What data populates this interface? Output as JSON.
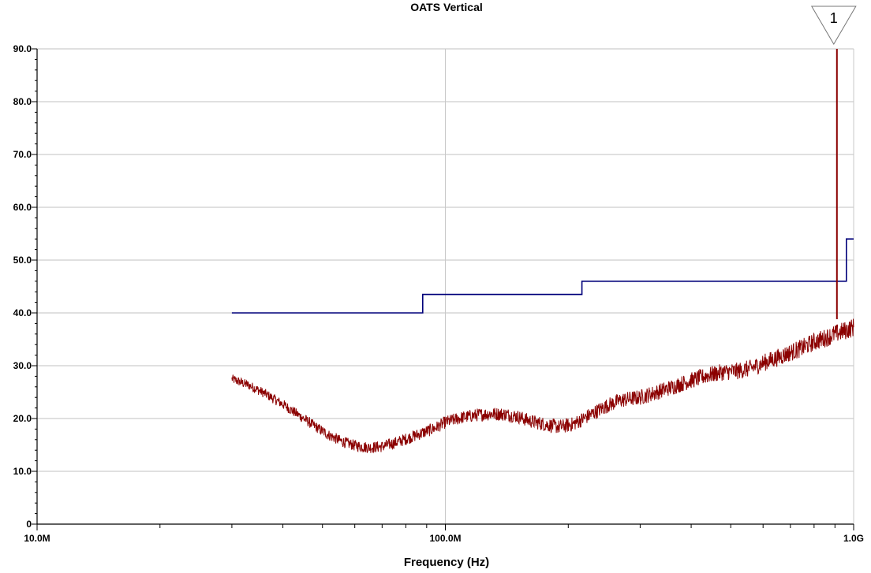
{
  "chart_data": {
    "type": "line",
    "title": "OATS Vertical",
    "xlabel": "Frequency (Hz)",
    "ylabel": "",
    "x_scale": "log",
    "xlim": [
      10000000,
      1000000000
    ],
    "ylim": [
      0,
      90
    ],
    "grid": true,
    "x_tick_values": [
      10000000,
      100000000,
      1000000000
    ],
    "x_tick_labels": [
      "10.0M",
      "100.0M",
      "1.0G"
    ],
    "y_tick_values": [
      0,
      10,
      20,
      30,
      40,
      50,
      60,
      70,
      80,
      90
    ],
    "y_tick_labels": [
      "0",
      "10.0",
      "20.0",
      "30.0",
      "40.0",
      "50.0",
      "60.0",
      "70.0",
      "80.0",
      "90.0"
    ],
    "marker": {
      "label": "1",
      "x": 910000000
    },
    "series": [
      {
        "color": "#00007a",
        "style": "step",
        "x": [
          30000000,
          88000000,
          88000000,
          216000000,
          216000000,
          960000000,
          960000000,
          1000000000
        ],
        "y": [
          40,
          40,
          43.5,
          43.5,
          46,
          46,
          54,
          54
        ]
      },
      {
        "color": "#8b0000",
        "style": "noisy",
        "x": [
          30000000,
          33000000,
          36000000,
          40000000,
          44000000,
          48000000,
          52000000,
          56000000,
          60000000,
          65000000,
          70000000,
          76000000,
          82000000,
          88000000,
          95000000,
          100000000,
          110000000,
          120000000,
          130000000,
          140000000,
          150000000,
          160000000,
          175000000,
          190000000,
          205000000,
          216000000,
          230000000,
          250000000,
          270000000,
          300000000,
          330000000,
          360000000,
          400000000,
          440000000,
          480000000,
          520000000,
          560000000,
          600000000,
          650000000,
          700000000,
          750000000,
          800000000,
          850000000,
          900000000,
          950000000,
          1000000000
        ],
        "y": [
          27.5,
          26.3,
          24.8,
          22.7,
          20.5,
          18.5,
          16.8,
          15.6,
          14.9,
          14.5,
          14.7,
          15.5,
          16.4,
          17.3,
          18.3,
          19.3,
          20.2,
          20.7,
          20.9,
          20.8,
          20.4,
          19.6,
          18.9,
          18.4,
          18.9,
          19.8,
          21.0,
          22.5,
          23.5,
          24.0,
          25.0,
          26.0,
          27.2,
          28.2,
          28.8,
          29.0,
          29.5,
          30.5,
          31.5,
          32.5,
          33.4,
          34.5,
          35.2,
          36.0,
          36.6,
          37.3
        ]
      }
    ]
  }
}
